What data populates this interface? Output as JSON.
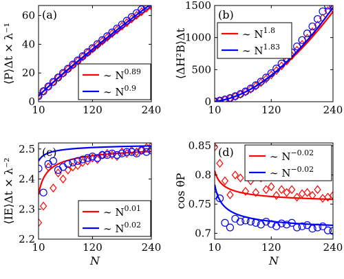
{
  "chart_data": [
    {
      "type": "line",
      "panel_tag": "(a)",
      "ylabel": "⟨P⟩Δt × λ⁻¹",
      "xlim": [
        10,
        240
      ],
      "ylim": [
        0,
        67
      ],
      "xticks": [
        10,
        120,
        240
      ],
      "yticks": [
        0,
        20,
        40,
        60
      ],
      "grid": false,
      "legend_position": "bottom-right",
      "series": [
        {
          "name": "∼ N^0.89",
          "legend_base": "∼ N",
          "legend_exp": "0.89",
          "color": "#ff0000",
          "marker": "diamond",
          "exponent": 0.89,
          "fit_coeff": 0.502,
          "x": [
            10,
            20,
            30,
            40,
            50,
            60,
            70,
            80,
            90,
            100,
            110,
            120,
            130,
            140,
            150,
            160,
            170,
            180,
            190,
            200,
            210,
            220,
            230,
            240
          ],
          "y": [
            3.9,
            7.3,
            10.5,
            13.7,
            16.8,
            19.7,
            22.7,
            25.5,
            28.4,
            31.2,
            34.0,
            36.7,
            39.4,
            42.1,
            44.7,
            47.4,
            50.0,
            52.6,
            55.1,
            57.7,
            60.2,
            62.7,
            65.2,
            66.5
          ]
        },
        {
          "name": "∼ N^0.9",
          "legend_base": "∼ N",
          "legend_exp": "0.9",
          "color": "#0000ff",
          "marker": "circle",
          "exponent": 0.9,
          "fit_coeff": 0.492,
          "x": [
            10,
            20,
            30,
            40,
            50,
            60,
            70,
            80,
            90,
            100,
            110,
            120,
            130,
            140,
            150,
            160,
            170,
            180,
            190,
            200,
            210,
            220,
            230,
            240
          ],
          "y": [
            3.9,
            7.3,
            10.6,
            13.8,
            16.9,
            20.0,
            23.0,
            25.9,
            28.8,
            31.7,
            34.5,
            37.3,
            40.1,
            42.9,
            45.6,
            48.3,
            51.0,
            53.7,
            56.4,
            59.0,
            61.7,
            64.3,
            66.9,
            68.9
          ]
        }
      ]
    },
    {
      "type": "line",
      "panel_tag": "(b)",
      "ylabel": "⟨ΔH²B⟩Δt",
      "xlim": [
        10,
        240
      ],
      "ylim": [
        0,
        1500
      ],
      "xticks": [
        10,
        120,
        240
      ],
      "yticks": [
        0,
        500,
        1000,
        1500
      ],
      "grid": false,
      "legend_position": "top-left",
      "series": [
        {
          "name": "∼ N^1.8",
          "legend_base": "∼ N",
          "legend_exp": "1.8",
          "color": "#ff0000",
          "marker": "diamond",
          "exponent": 1.8,
          "fit_coeff": 0.073,
          "x": [
            10,
            20,
            30,
            40,
            50,
            60,
            70,
            80,
            90,
            100,
            110,
            120,
            130,
            140,
            150,
            160,
            170,
            180,
            190,
            200,
            210,
            220,
            230,
            240
          ],
          "y": [
            4.6,
            16,
            33,
            55,
            83,
            115,
            153,
            196,
            244,
            297,
            355,
            418,
            486,
            558,
            635,
            717,
            803,
            894,
            990,
            1090,
            1195,
            1304,
            1418,
            1450
          ]
        },
        {
          "name": "∼ N^1.83",
          "legend_base": "∼ N",
          "legend_exp": "1.83",
          "color": "#0000ff",
          "marker": "circle",
          "exponent": 1.83,
          "fit_coeff": 0.0647,
          "x": [
            10,
            20,
            30,
            40,
            50,
            60,
            70,
            80,
            90,
            100,
            110,
            120,
            130,
            140,
            150,
            160,
            170,
            180,
            190,
            200,
            210,
            220,
            230,
            240
          ],
          "y": [
            4.4,
            16,
            34,
            57,
            86,
            120,
            160,
            206,
            257,
            314,
            376,
            444,
            517,
            595,
            679,
            768,
            862,
            961,
            1065,
            1174,
            1289,
            1408,
            1500,
            1500
          ]
        }
      ]
    },
    {
      "type": "line",
      "panel_tag": "(c)",
      "ylabel": "⟨IE⟩Δt × λ⁻²",
      "xlim": [
        10,
        240
      ],
      "ylim": [
        2.2,
        2.52
      ],
      "xticks": [
        10,
        120,
        240
      ],
      "yticks": [
        2.2,
        2.3,
        2.4,
        2.5
      ],
      "ytick_labels": [
        "2.2",
        "2.3",
        "2.4",
        "2.5"
      ],
      "grid": false,
      "legend_position": "bottom-right",
      "series": [
        {
          "name": "∼ N^0.01",
          "legend_base": "∼ N",
          "legend_exp": "0.01",
          "color": "#ff0000",
          "marker": "diamond",
          "exponent": 0.01,
          "fit_form": "saturating",
          "fit_a": 2.522,
          "fit_b": 0.62,
          "fit_c": 0.55,
          "x": [
            10,
            20,
            30,
            40,
            50,
            60,
            70,
            80,
            90,
            100,
            110,
            120,
            130,
            140,
            150,
            160,
            170,
            180,
            190,
            200,
            210,
            220,
            230,
            240
          ],
          "y": [
            2.255,
            2.31,
            2.44,
            2.37,
            2.42,
            2.4,
            2.43,
            2.44,
            2.445,
            2.455,
            2.46,
            2.47,
            2.465,
            2.48,
            2.485,
            2.48,
            2.475,
            2.49,
            2.485,
            2.495,
            2.49,
            2.495,
            2.505,
            2.51
          ]
        },
        {
          "name": "∼ N^0.02",
          "legend_base": "∼ N",
          "legend_exp": "0.02",
          "color": "#0000ff",
          "marker": "circle",
          "exponent": 0.02,
          "fit_form": "saturating",
          "fit_a": 2.523,
          "fit_b": 0.2,
          "fit_c": 0.5,
          "x": [
            10,
            20,
            30,
            40,
            50,
            60,
            70,
            80,
            90,
            100,
            110,
            120,
            130,
            140,
            150,
            160,
            170,
            180,
            190,
            200,
            210,
            220,
            230,
            240
          ],
          "y": [
            2.435,
            2.355,
            2.45,
            2.46,
            2.43,
            2.44,
            2.45,
            2.455,
            2.46,
            2.465,
            2.47,
            2.475,
            2.47,
            2.48,
            2.48,
            2.485,
            2.48,
            2.485,
            2.49,
            2.49,
            2.485,
            2.495,
            2.49,
            2.495
          ]
        }
      ]
    },
    {
      "type": "line",
      "panel_tag": "(d)",
      "ylabel": "cos θP",
      "xlabel": "N",
      "xlim": [
        10,
        240
      ],
      "ylim": [
        0.69,
        0.855
      ],
      "xticks": [
        10,
        120,
        240
      ],
      "yticks": [
        0.7,
        0.75,
        0.8,
        0.85
      ],
      "ytick_labels": [
        "0.7",
        "0.75",
        "0.8",
        "0.85"
      ],
      "grid": false,
      "legend_position": "top-right",
      "series": [
        {
          "name": "∼ N^-0.02",
          "legend_base": "∼ N",
          "legend_exp": "−0.02",
          "color": "#ff0000",
          "marker": "diamond",
          "exponent": -0.02,
          "fit_form": "decay",
          "fit_a": 0.748,
          "fit_b": 0.21,
          "fit_c": 0.55,
          "x": [
            10,
            20,
            30,
            40,
            50,
            60,
            70,
            80,
            90,
            100,
            110,
            120,
            130,
            140,
            150,
            160,
            170,
            180,
            190,
            200,
            210,
            220,
            230,
            240
          ],
          "y": [
            0.848,
            0.82,
            0.79,
            0.766,
            0.8,
            0.795,
            0.772,
            0.79,
            0.77,
            0.795,
            0.775,
            0.78,
            0.765,
            0.775,
            0.77,
            0.775,
            0.762,
            0.768,
            0.77,
            0.765,
            0.775,
            0.76,
            0.762,
            0.765
          ]
        },
        {
          "name": "∼ N^-0.02",
          "legend_base": "∼ N",
          "legend_exp": "−0.02",
          "color": "#0000ff",
          "marker": "circle",
          "exponent": -0.02,
          "fit_form": "decay",
          "fit_a": 0.699,
          "fit_b": 0.3,
          "fit_c": 0.55,
          "x": [
            10,
            20,
            30,
            40,
            50,
            60,
            70,
            80,
            90,
            100,
            110,
            120,
            130,
            140,
            150,
            160,
            170,
            180,
            190,
            200,
            210,
            220,
            230,
            240
          ],
          "y": [
            0.765,
            0.76,
            0.718,
            0.71,
            0.725,
            0.72,
            0.722,
            0.72,
            0.718,
            0.715,
            0.72,
            0.716,
            0.712,
            0.717,
            0.715,
            0.718,
            0.71,
            0.712,
            0.714,
            0.708,
            0.71,
            0.712,
            0.705,
            0.704
          ]
        }
      ]
    }
  ]
}
